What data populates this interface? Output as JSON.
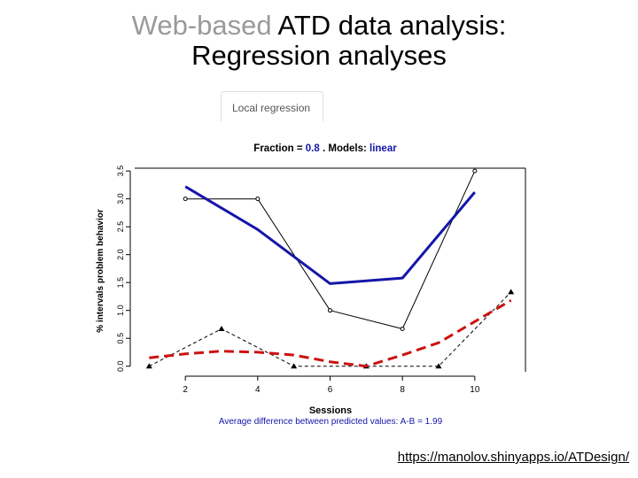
{
  "slide": {
    "title_muted": "Web-based",
    "title_rest": " ATD data analysis:",
    "title_line2": "Regression analyses",
    "tab_label": "Local regression",
    "url": "https://manolov.shinyapps.io/ATDesign/"
  },
  "chart_data": {
    "type": "line",
    "title_prefix": "Fraction = ",
    "title_fraction": "0.8",
    "title_middle": " . Models: ",
    "title_model": "linear",
    "xlabel": "Sessions",
    "ylabel": "% intervals problem behavior",
    "footnote": "Average difference between predicted values: A-B = 1.99",
    "xlim": [
      0.6,
      11.4
    ],
    "ylim": [
      -0.1,
      3.55
    ],
    "xticks": [
      2,
      4,
      6,
      8,
      10
    ],
    "yticks": [
      0.0,
      0.5,
      1.0,
      1.5,
      2.0,
      2.5,
      3.0,
      3.5
    ],
    "ytick_labels": [
      "0.0",
      "0.5",
      "1.0",
      "1.5",
      "2.0",
      "2.5",
      "3.0",
      "3.5"
    ],
    "series": [
      {
        "kind": "data",
        "marker": "circle",
        "color": "#000000",
        "style": "solid",
        "x": [
          2,
          3,
          4,
          6,
          8,
          10
        ],
        "y": [
          3.0,
          3.0,
          3.0,
          1.0,
          0.67,
          3.5
        ],
        "marked": [
          true,
          false,
          true,
          true,
          true,
          true
        ]
      },
      {
        "kind": "data",
        "marker": "triangle",
        "color": "#000000",
        "style": "dashed",
        "x": [
          1,
          3,
          5,
          7,
          9,
          11
        ],
        "y": [
          0.0,
          0.67,
          0.0,
          0.0,
          0.0,
          1.33
        ],
        "marked": [
          true,
          true,
          true,
          true,
          true,
          true
        ]
      },
      {
        "kind": "fit",
        "color": "#1515aa",
        "style": "solid",
        "x": [
          2,
          4,
          6,
          8,
          10
        ],
        "y": [
          3.22,
          2.45,
          1.48,
          1.58,
          3.12
        ]
      },
      {
        "kind": "fit",
        "color": "#cc1111",
        "style": "dashed",
        "x": [
          1,
          2,
          3,
          4,
          5,
          6,
          7,
          8,
          9,
          10,
          11
        ],
        "y": [
          0.15,
          0.22,
          0.27,
          0.25,
          0.2,
          0.08,
          0.0,
          0.2,
          0.42,
          0.8,
          1.18
        ]
      }
    ]
  }
}
